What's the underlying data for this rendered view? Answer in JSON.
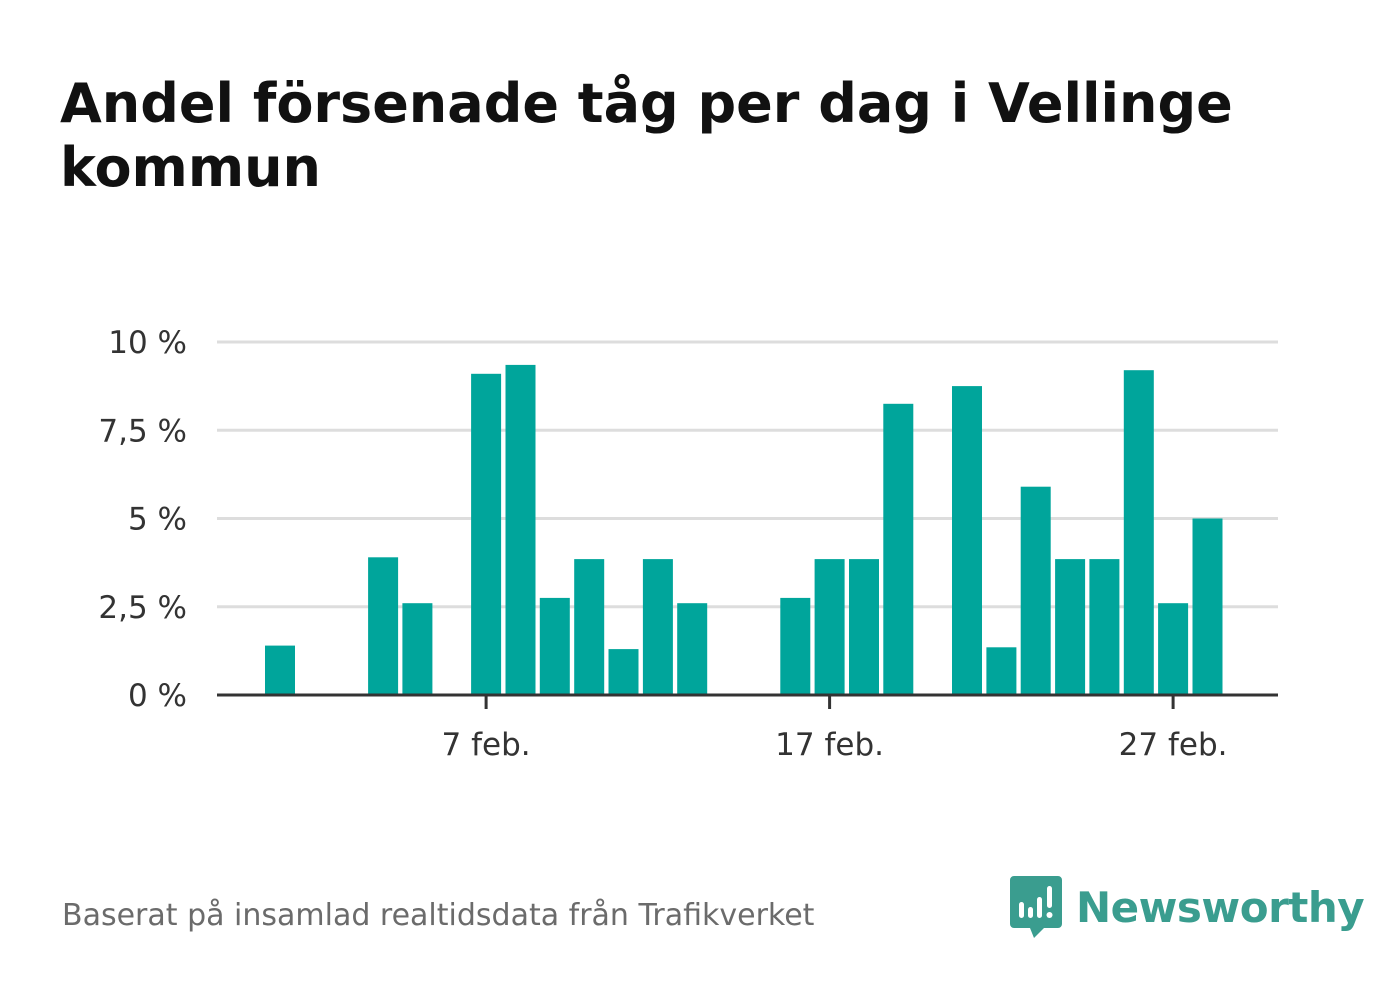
{
  "title": "Andel försenade tåg per dag i Vellinge kommun",
  "source": "Baserat på insamlad realtidsdata från Trafikverket",
  "brand": {
    "name": "Newsworthy",
    "color": "#3a9d8f"
  },
  "colors": {
    "bar": "#00a59b",
    "grid": "#dddddd",
    "axis": "#333333",
    "tick_label": "#333333"
  },
  "chart_data": {
    "type": "bar",
    "categories": [
      "1 feb.",
      "2 feb.",
      "3 feb.",
      "4 feb.",
      "5 feb.",
      "6 feb.",
      "7 feb.",
      "8 feb.",
      "9 feb.",
      "10 feb.",
      "11 feb.",
      "12 feb.",
      "13 feb.",
      "14 feb.",
      "15 feb.",
      "16 feb.",
      "17 feb.",
      "18 feb.",
      "19 feb.",
      "20 feb.",
      "21 feb.",
      "22 feb.",
      "23 feb.",
      "24 feb.",
      "25 feb.",
      "26 feb.",
      "27 feb.",
      "28 feb."
    ],
    "values": [
      1.4,
      0,
      0,
      3.9,
      2.6,
      0,
      9.1,
      9.35,
      2.75,
      3.85,
      1.3,
      3.85,
      2.6,
      0,
      0,
      2.75,
      3.85,
      3.85,
      8.25,
      0,
      8.75,
      1.35,
      5.9,
      3.85,
      3.85,
      9.2,
      2.6,
      5.0
    ],
    "ylim": [
      0,
      10
    ],
    "yticks": [
      0,
      2.5,
      5,
      7.5,
      10
    ],
    "ytick_labels": [
      "0 %",
      "2,5 %",
      "5 %",
      "7,5 %",
      "10 %"
    ],
    "xtick_indices": [
      6,
      16,
      26
    ],
    "xtick_labels": [
      "7 feb.",
      "17 feb.",
      "27 feb."
    ],
    "grid": true,
    "legend": "none"
  }
}
